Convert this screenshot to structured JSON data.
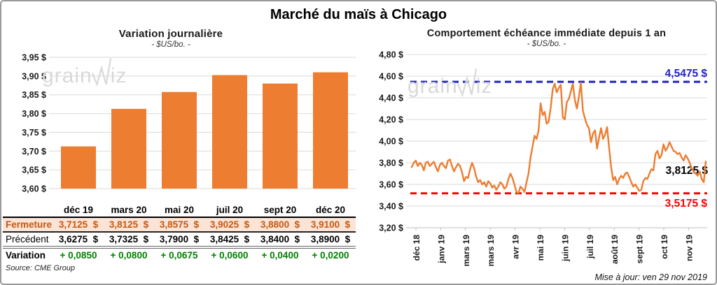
{
  "header": {
    "title": "Marché du maïs à Chicago"
  },
  "watermark": {
    "left_text": "grain",
    "right_text": "iz"
  },
  "left_footer": {
    "source": "Source: CME Group"
  },
  "right_footer": {
    "updated": "Mise à jour: ven 29 nov 2019"
  },
  "colors": {
    "bar": "#ED7D31",
    "line": "#ED7D31",
    "max_line": "#2121C8",
    "min_line": "#FE0000",
    "grid": "#D9D9D9",
    "axis": "#BFBFBF",
    "fermeture_text": "#C45911",
    "fermeture_bg": "#FBE3D6",
    "variation_text": "#008000"
  },
  "table": {
    "columns": [
      "déc 19",
      "mars 20",
      "mai 20",
      "juil 20",
      "sept 20",
      "déc 20"
    ],
    "rows": [
      {
        "id": "fermeture",
        "label": "Fermeture",
        "values": [
          "3,7125  $",
          "3,8125  $",
          "3,8575  $",
          "3,9025  $",
          "3,8800  $",
          "3,9100  $"
        ]
      },
      {
        "id": "precedent",
        "label": "Précédent",
        "values": [
          "3,6275  $",
          "3,7325  $",
          "3,7900  $",
          "3,8425  $",
          "3,8400  $",
          "3,8900  $"
        ]
      },
      {
        "id": "variation",
        "label": "Variation",
        "values": [
          "+ 0,0850",
          "+ 0,0800",
          "+ 0,0675",
          "+ 0,0600",
          "+ 0,0400",
          "+ 0,0200"
        ]
      }
    ]
  },
  "chart_data": [
    {
      "id": "variation-journaliere",
      "type": "bar",
      "title": "Variation journalière",
      "subtitle": "- $US/bo. -",
      "categories": [
        "déc 19",
        "mars 20",
        "mai 20",
        "juil 20",
        "sept 20",
        "déc 20"
      ],
      "values": [
        3.7125,
        3.8125,
        3.8575,
        3.9025,
        3.88,
        3.91
      ],
      "ylim": [
        3.6,
        3.95
      ],
      "ytick_step": 0.05,
      "yticks": [
        "3,95 $",
        "3,90 $",
        "3,85 $",
        "3,80 $",
        "3,75 $",
        "3,70 $",
        "3,65 $",
        "3,60 $"
      ],
      "grid": true,
      "legend": "none"
    },
    {
      "id": "echeance-immediate-1an",
      "type": "line",
      "title": "Comportement  échéance immédiate depuis 1 an",
      "subtitle": "- $US/bo. -",
      "x_labels": [
        "déc 18",
        "janv 19",
        "mars 19",
        "mars 19",
        "avr 19",
        "mai 19",
        "juin 19",
        "juil 19",
        "août 19",
        "sept 19",
        "oct 19",
        "nov 19"
      ],
      "ylim": [
        3.2,
        4.8
      ],
      "ytick_step": 0.2,
      "yticks": [
        "4,80 $",
        "4,60 $",
        "4,40 $",
        "4,20 $",
        "4,00 $",
        "3,80 $",
        "3,60 $",
        "3,40 $",
        "3,20 $"
      ],
      "grid": true,
      "legend": "none",
      "max_line": {
        "value": 4.5475,
        "label": "4,5475 $"
      },
      "min_line": {
        "value": 3.5175,
        "label": "3,5175 $"
      },
      "last_point": {
        "value": 3.8125,
        "label": "3,8125 $"
      },
      "values": [
        3.76,
        3.8,
        3.82,
        3.77,
        3.8,
        3.78,
        3.73,
        3.8,
        3.81,
        3.77,
        3.79,
        3.81,
        3.76,
        3.72,
        3.78,
        3.8,
        3.77,
        3.75,
        3.82,
        3.83,
        3.77,
        3.72,
        3.76,
        3.79,
        3.77,
        3.71,
        3.63,
        3.67,
        3.66,
        3.74,
        3.8,
        3.75,
        3.67,
        3.62,
        3.64,
        3.6,
        3.62,
        3.58,
        3.63,
        3.61,
        3.57,
        3.59,
        3.55,
        3.58,
        3.62,
        3.6,
        3.56,
        3.58,
        3.65,
        3.7,
        3.66,
        3.6,
        3.53,
        3.52,
        3.58,
        3.56,
        3.53,
        3.62,
        3.7,
        3.85,
        3.95,
        4.05,
        4.02,
        4.1,
        4.35,
        4.24,
        4.27,
        4.16,
        4.18,
        4.31,
        4.48,
        4.53,
        4.45,
        4.49,
        4.52,
        4.22,
        4.2,
        4.36,
        4.39,
        4.46,
        4.53,
        4.38,
        4.3,
        4.41,
        4.54,
        4.28,
        4.21,
        4.15,
        4.12,
        3.99,
        4.07,
        4.1,
        3.93,
        4.03,
        4.12,
        4.02,
        4.06,
        4.13,
        3.94,
        3.76,
        3.64,
        3.67,
        3.6,
        3.65,
        3.68,
        3.66,
        3.7,
        3.71,
        3.67,
        3.62,
        3.58,
        3.6,
        3.57,
        3.54,
        3.55,
        3.63,
        3.66,
        3.65,
        3.7,
        3.74,
        3.73,
        3.88,
        3.91,
        3.84,
        3.87,
        3.97,
        3.91,
        3.94,
        3.99,
        3.95,
        3.91,
        3.9,
        3.88,
        3.89,
        3.85,
        3.82,
        3.87,
        3.84,
        3.8,
        3.75,
        3.72,
        3.7,
        3.68,
        3.72,
        3.65,
        3.62,
        3.8125
      ]
    }
  ]
}
